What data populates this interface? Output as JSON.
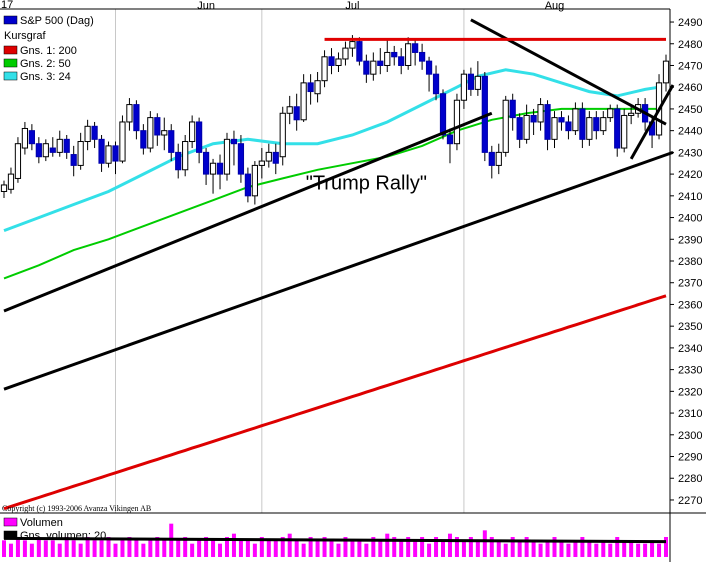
{
  "chart_data": {
    "type": "candlestick",
    "year_label": "17",
    "months": [
      {
        "label": "Jun",
        "bar": 29
      },
      {
        "label": "Jul",
        "bar": 50
      },
      {
        "label": "Aug",
        "bar": 79
      }
    ],
    "month_dividers": [
      16,
      37,
      66
    ],
    "y_ticks": [
      2270,
      2280,
      2290,
      2300,
      2310,
      2320,
      2330,
      2340,
      2350,
      2360,
      2370,
      2380,
      2390,
      2400,
      2410,
      2420,
      2430,
      2440,
      2450,
      2460,
      2470,
      2480,
      2490
    ],
    "ylim": [
      2264,
      2496
    ],
    "bar_count": 96,
    "legend": {
      "series": {
        "label": "S&P 500 (Dag)",
        "color": "#0000cc"
      },
      "kursgraf": "Kursgraf",
      "ma": [
        {
          "label": "Gns. 1: 200",
          "color": "#dd0000",
          "start": 2266,
          "end": 2364,
          "curve": 0.9
        },
        {
          "label": "Gns. 2: 50",
          "color": "#00cc00"
        },
        {
          "label": "Gns. 3: 24",
          "color": "#33e0e8"
        }
      ]
    },
    "ma50_points": [
      [
        0,
        2372
      ],
      [
        5,
        2378
      ],
      [
        10,
        2385
      ],
      [
        15,
        2390
      ],
      [
        20,
        2396
      ],
      [
        25,
        2402
      ],
      [
        30,
        2408
      ],
      [
        35,
        2414
      ],
      [
        40,
        2418
      ],
      [
        45,
        2422
      ],
      [
        50,
        2425
      ],
      [
        55,
        2428
      ],
      [
        60,
        2433
      ],
      [
        65,
        2440
      ],
      [
        70,
        2445
      ],
      [
        75,
        2448
      ],
      [
        80,
        2450
      ],
      [
        85,
        2450
      ],
      [
        90,
        2450
      ],
      [
        94,
        2450
      ]
    ],
    "ma24_points": [
      [
        0,
        2394
      ],
      [
        5,
        2400
      ],
      [
        10,
        2406
      ],
      [
        15,
        2412
      ],
      [
        20,
        2420
      ],
      [
        25,
        2428
      ],
      [
        30,
        2434
      ],
      [
        35,
        2436
      ],
      [
        40,
        2434
      ],
      [
        45,
        2434
      ],
      [
        50,
        2438
      ],
      [
        55,
        2444
      ],
      [
        60,
        2452
      ],
      [
        65,
        2460
      ],
      [
        68,
        2465
      ],
      [
        72,
        2468
      ],
      [
        76,
        2466
      ],
      [
        80,
        2462
      ],
      [
        84,
        2458
      ],
      [
        88,
        2456
      ],
      [
        92,
        2459
      ],
      [
        94,
        2460
      ]
    ],
    "candles": [
      [
        2412,
        2415,
        2409,
        2417
      ],
      [
        2413,
        2420,
        2411,
        2423
      ],
      [
        2418,
        2434,
        2416,
        2437
      ],
      [
        2432,
        2441,
        2429,
        2444
      ],
      [
        2440,
        2434,
        2431,
        2443
      ],
      [
        2434,
        2428,
        2425,
        2437
      ],
      [
        2428,
        2434,
        2426,
        2436
      ],
      [
        2432,
        2430,
        2428,
        2437
      ],
      [
        2430,
        2436,
        2428,
        2440
      ],
      [
        2436,
        2430,
        2427,
        2438
      ],
      [
        2429,
        2424,
        2419,
        2433
      ],
      [
        2424,
        2435,
        2422,
        2439
      ],
      [
        2435,
        2442,
        2431,
        2445
      ],
      [
        2442,
        2436,
        2432,
        2444
      ],
      [
        2436,
        2425,
        2421,
        2438
      ],
      [
        2425,
        2433,
        2423,
        2435
      ],
      [
        2433,
        2426,
        2420,
        2435
      ],
      [
        2426,
        2444,
        2425,
        2447
      ],
      [
        2444,
        2452,
        2440,
        2455
      ],
      [
        2452,
        2440,
        2436,
        2454
      ],
      [
        2440,
        2432,
        2429,
        2443
      ],
      [
        2432,
        2446,
        2430,
        2449
      ],
      [
        2446,
        2438,
        2433,
        2448
      ],
      [
        2438,
        2440,
        2431,
        2446
      ],
      [
        2440,
        2430,
        2426,
        2443
      ],
      [
        2430,
        2422,
        2418,
        2434
      ],
      [
        2422,
        2435,
        2419,
        2438
      ],
      [
        2435,
        2444,
        2432,
        2447
      ],
      [
        2444,
        2430,
        2425,
        2446
      ],
      [
        2430,
        2420,
        2415,
        2432
      ],
      [
        2420,
        2425,
        2411,
        2427
      ],
      [
        2425,
        2420,
        2413,
        2429
      ],
      [
        2420,
        2436,
        2417,
        2439
      ],
      [
        2436,
        2434,
        2424,
        2440
      ],
      [
        2434,
        2420,
        2416,
        2438
      ],
      [
        2420,
        2410,
        2407,
        2423
      ],
      [
        2410,
        2424,
        2406,
        2426
      ],
      [
        2424,
        2426,
        2418,
        2432
      ],
      [
        2426,
        2430,
        2423,
        2434
      ],
      [
        2430,
        2425,
        2420,
        2434
      ],
      [
        2428,
        2448,
        2424,
        2451
      ],
      [
        2448,
        2451,
        2443,
        2456
      ],
      [
        2451,
        2445,
        2440,
        2457
      ],
      [
        2445,
        2462,
        2444,
        2466
      ],
      [
        2462,
        2458,
        2452,
        2466
      ],
      [
        2457,
        2463,
        2453,
        2467
      ],
      [
        2463,
        2474,
        2460,
        2477
      ],
      [
        2474,
        2470,
        2466,
        2478
      ],
      [
        2470,
        2473,
        2467,
        2476
      ],
      [
        2473,
        2478,
        2470,
        2481
      ],
      [
        2478,
        2481,
        2474,
        2484
      ],
      [
        2481,
        2472,
        2470,
        2483
      ],
      [
        2472,
        2466,
        2462,
        2475
      ],
      [
        2466,
        2472,
        2463,
        2476
      ],
      [
        2472,
        2470,
        2466,
        2478
      ],
      [
        2470,
        2476,
        2467,
        2482
      ],
      [
        2476,
        2474,
        2470,
        2479
      ],
      [
        2474,
        2470,
        2466,
        2478
      ],
      [
        2470,
        2480,
        2468,
        2483
      ],
      [
        2480,
        2476,
        2470,
        2482
      ],
      [
        2476,
        2472,
        2468,
        2480
      ],
      [
        2472,
        2466,
        2458,
        2474
      ],
      [
        2466,
        2457,
        2454,
        2470
      ],
      [
        2457,
        2438,
        2436,
        2459
      ],
      [
        2438,
        2434,
        2425,
        2441
      ],
      [
        2434,
        2454,
        2431,
        2457
      ],
      [
        2454,
        2466,
        2450,
        2468
      ],
      [
        2466,
        2459,
        2456,
        2469
      ],
      [
        2459,
        2465,
        2456,
        2472
      ],
      [
        2465,
        2430,
        2426,
        2467
      ],
      [
        2430,
        2424,
        2418,
        2433
      ],
      [
        2424,
        2430,
        2420,
        2434
      ],
      [
        2430,
        2454,
        2428,
        2456
      ],
      [
        2454,
        2446,
        2440,
        2457
      ],
      [
        2446,
        2436,
        2432,
        2448
      ],
      [
        2436,
        2447,
        2434,
        2452
      ],
      [
        2447,
        2444,
        2438,
        2450
      ],
      [
        2444,
        2452,
        2440,
        2455
      ],
      [
        2452,
        2436,
        2431,
        2454
      ],
      [
        2436,
        2446,
        2432,
        2449
      ],
      [
        2446,
        2444,
        2440,
        2449
      ],
      [
        2444,
        2440,
        2436,
        2447
      ],
      [
        2440,
        2450,
        2438,
        2453
      ],
      [
        2450,
        2436,
        2432,
        2453
      ],
      [
        2436,
        2446,
        2433,
        2449
      ],
      [
        2446,
        2440,
        2436,
        2449
      ],
      [
        2440,
        2446,
        2438,
        2449
      ],
      [
        2446,
        2450,
        2444,
        2452
      ],
      [
        2450,
        2432,
        2428,
        2452
      ],
      [
        2432,
        2447,
        2430,
        2450
      ],
      [
        2447,
        2448,
        2443,
        2452
      ],
      [
        2448,
        2452,
        2446,
        2455
      ],
      [
        2452,
        2444,
        2440,
        2455
      ],
      [
        2444,
        2438,
        2432,
        2447
      ],
      [
        2438,
        2462,
        2436,
        2466
      ],
      [
        2462,
        2472,
        2458,
        2475
      ]
    ],
    "annotations": [
      {
        "text": "\"Trump Rally\"",
        "x_bar": 52,
        "y": 2413
      },
      {
        "type": "hline",
        "y": 2482,
        "x0_bar": 46,
        "x1_bar": 95,
        "color": "#e00000"
      }
    ],
    "trendlines": [
      {
        "x0_bar": 0,
        "y0": 2357,
        "x1_bar": 70,
        "y1": 2448,
        "color": "#000000"
      },
      {
        "x0_bar": 0,
        "y0": 2321,
        "x1_bar": 96,
        "y1": 2430,
        "color": "#000000"
      },
      {
        "x0_bar": 67,
        "y0": 2491,
        "x1_bar": 95,
        "y1": 2443,
        "color": "#000000"
      },
      {
        "x0_bar": 90,
        "y0": 2427,
        "x1_bar": 96,
        "y1": 2461,
        "color": "#000000"
      }
    ],
    "volume_panel": {
      "legend": [
        {
          "label": "Volumen",
          "color": "#ff00ff"
        },
        {
          "label": "Gns. volumen: 20",
          "color": "#000000"
        }
      ],
      "values": [
        5,
        4,
        6,
        5,
        4,
        6,
        5,
        5,
        4,
        6,
        5,
        4,
        6,
        5,
        5,
        6,
        4,
        5,
        6,
        5,
        4,
        5,
        6,
        5,
        10,
        5,
        6,
        4,
        5,
        6,
        5,
        4,
        6,
        7,
        5,
        5,
        4,
        6,
        5,
        5,
        6,
        7,
        5,
        4,
        6,
        5,
        6,
        5,
        4,
        6,
        5,
        5,
        4,
        6,
        5,
        7,
        6,
        5,
        6,
        5,
        6,
        4,
        6,
        5,
        7,
        6,
        5,
        6,
        5,
        8,
        6,
        5,
        4,
        6,
        5,
        6,
        5,
        4,
        5,
        6,
        5,
        4,
        5,
        6,
        5,
        4,
        5,
        4,
        6,
        5,
        5,
        4,
        4,
        5,
        4,
        6
      ],
      "avg_start": 5.6,
      "avg_end": 4.6,
      "vmax": 12
    },
    "copyright": "Copyright (c) 1993-2006 Avanza Vikingen AB"
  }
}
